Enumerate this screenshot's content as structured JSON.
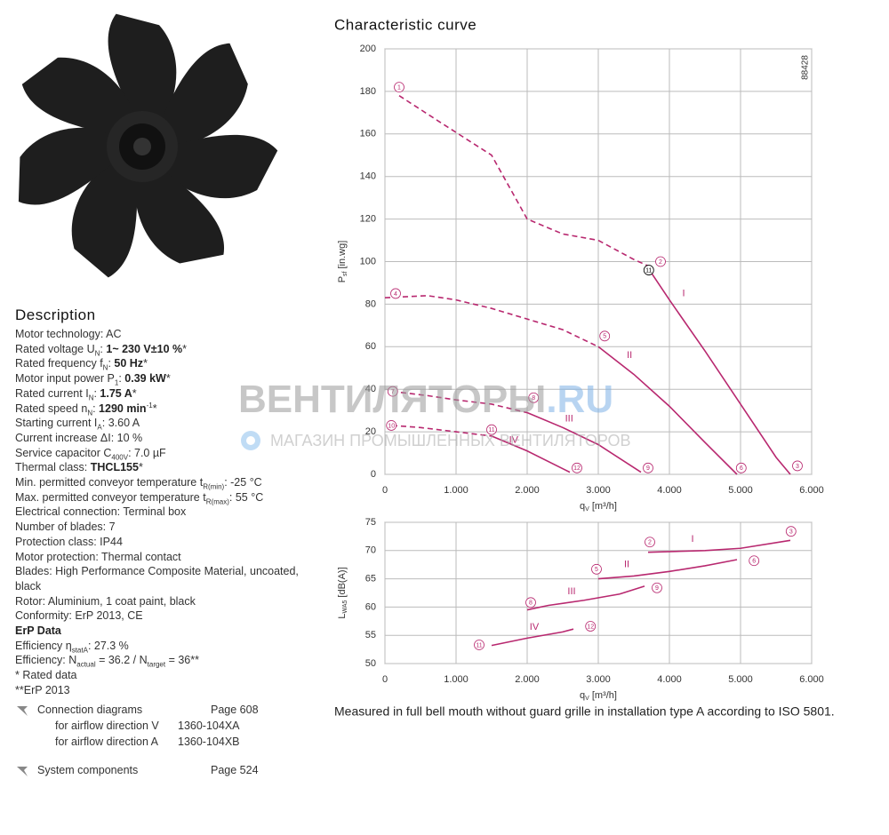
{
  "header": {
    "title": "Characteristic curve",
    "code": "88428"
  },
  "chart_data": [
    {
      "type": "line",
      "xlim": [
        0,
        6000
      ],
      "xticks": [
        0,
        {
          "value": 1000,
          "label": "1.000"
        },
        {
          "value": 2000,
          "label": "2.000"
        },
        {
          "value": 3000,
          "label": "3.000"
        },
        {
          "value": 4000,
          "label": "4.000"
        },
        {
          "value": 5000,
          "label": "5.000"
        },
        {
          "value": 6000,
          "label": "6.000"
        }
      ],
      "ylim": [
        0,
        200
      ],
      "yticks": [
        0,
        20,
        40,
        60,
        80,
        100,
        120,
        140,
        160,
        180,
        200
      ],
      "grid": true,
      "x_label": {
        "symbol": "q",
        "sub": "V",
        "unit": "[m³/h]"
      },
      "y_label": {
        "symbol": "P",
        "sub": "sf",
        "unit": "[in.wg]"
      },
      "series": [
        {
          "color": "#b8286f",
          "dashed": true,
          "x": [
            200,
            800,
            1500,
            2000,
            2500,
            3000,
            3500,
            3700
          ],
          "values": [
            178,
            165,
            150,
            120,
            113,
            110,
            101,
            98
          ]
        },
        {
          "name": "I",
          "color": "#b8286f",
          "label_x": 4200,
          "label_y": 85,
          "x": [
            3700,
            4000,
            4500,
            5000,
            5500,
            5700
          ],
          "values": [
            97,
            82,
            58,
            33,
            8,
            0
          ]
        },
        {
          "color": "#b8286f",
          "dashed": true,
          "x": [
            0,
            600,
            1000,
            1500,
            2000,
            2500,
            3000
          ],
          "values": [
            83,
            84,
            82,
            78,
            73,
            68,
            60
          ]
        },
        {
          "name": "II",
          "color": "#b8286f",
          "label_x": 3440,
          "label_y": 56,
          "x": [
            3000,
            3500,
            4000,
            4500,
            4950
          ],
          "values": [
            60,
            47,
            32,
            15,
            0
          ]
        },
        {
          "color": "#b8286f",
          "dashed": true,
          "x": [
            100,
            600,
            1000,
            1500,
            2000
          ],
          "values": [
            39,
            37,
            35,
            33,
            29
          ]
        },
        {
          "name": "III",
          "color": "#b8286f",
          "label_x": 2590,
          "label_y": 26,
          "x": [
            2000,
            2500,
            3000,
            3600
          ],
          "values": [
            29,
            22,
            14,
            1
          ]
        },
        {
          "color": "#b8286f",
          "dashed": true,
          "x": [
            100,
            500,
            1000,
            1500
          ],
          "values": [
            23,
            22,
            20,
            18
          ]
        },
        {
          "name": "IV",
          "color": "#b8286f",
          "label_x": 1810,
          "label_y": 16,
          "x": [
            1500,
            2000,
            2600
          ],
          "values": [
            18,
            11,
            1
          ]
        }
      ],
      "point_labels": [
        {
          "text": "1",
          "x": 200,
          "y": 182,
          "color": "#b8286f"
        },
        {
          "text": "2",
          "x": 3875,
          "y": 100,
          "color": "#b8286f"
        },
        {
          "text": "3",
          "x": 5800,
          "y": 4,
          "color": "#b8286f"
        },
        {
          "text": "4",
          "x": 150,
          "y": 85,
          "color": "#b8286f"
        },
        {
          "text": "5",
          "x": 3090,
          "y": 65,
          "color": "#b8286f"
        },
        {
          "text": "6",
          "x": 5010,
          "y": 3,
          "color": "#b8286f"
        },
        {
          "text": "7",
          "x": 110,
          "y": 39,
          "color": "#b8286f"
        },
        {
          "text": "8",
          "x": 2090,
          "y": 36,
          "color": "#b8286f"
        },
        {
          "text": "9",
          "x": 3700,
          "y": 3,
          "color": "#b8286f"
        },
        {
          "text": "10",
          "x": 90,
          "y": 23,
          "color": "#b8286f"
        },
        {
          "text": "11",
          "x": 1500,
          "y": 21,
          "color": "#b8286f"
        },
        {
          "text": "12",
          "x": 2700,
          "y": 3,
          "color": "#b8286f"
        },
        {
          "text": "11",
          "x": 3710,
          "y": 96,
          "color": "#000000"
        }
      ]
    },
    {
      "type": "line",
      "xlim": [
        0,
        6000
      ],
      "xticks": [
        0,
        {
          "value": 1000,
          "label": "1.000"
        },
        {
          "value": 2000,
          "label": "2.000"
        },
        {
          "value": 3000,
          "label": "3.000"
        },
        {
          "value": 4000,
          "label": "4.000"
        },
        {
          "value": 5000,
          "label": "5.000"
        },
        {
          "value": 6000,
          "label": "6.000"
        }
      ],
      "ylim": [
        50,
        75
      ],
      "yticks": [
        50,
        55,
        60,
        65,
        70,
        75
      ],
      "grid": true,
      "x_label": {
        "symbol": "q",
        "sub": "V",
        "unit": "[m³/h]"
      },
      "y_label": {
        "symbol": "L",
        "sub": "WA5",
        "unit": "[dB(A)]"
      },
      "series": [
        {
          "name": "I",
          "color": "#b8286f",
          "label_x": 4325,
          "label_y": 72,
          "x": [
            3700,
            4500,
            5000,
            5700
          ],
          "values": [
            69.7,
            70,
            70.4,
            71.8
          ]
        },
        {
          "name": "II",
          "color": "#b8286f",
          "label_x": 3400,
          "label_y": 67.5,
          "x": [
            3000,
            3500,
            4000,
            4500,
            4950
          ],
          "values": [
            65,
            65.5,
            66.3,
            67.3,
            68.4
          ]
        },
        {
          "name": "III",
          "color": "#b8286f",
          "label_x": 2625,
          "label_y": 62.7,
          "x": [
            2000,
            2300,
            2800,
            3300,
            3650
          ],
          "values": [
            59.5,
            60.3,
            61.2,
            62.3,
            63.7
          ]
        },
        {
          "name": "IV",
          "color": "#b8286f",
          "label_x": 2100,
          "label_y": 56.4,
          "x": [
            1500,
            2000,
            2500,
            2650
          ],
          "values": [
            53.2,
            54.5,
            55.6,
            56.1
          ]
        }
      ],
      "point_labels": [
        {
          "text": "2",
          "x": 3725,
          "y": 71.5,
          "color": "#b8286f"
        },
        {
          "text": "3",
          "x": 5710,
          "y": 73.4,
          "color": "#b8286f"
        },
        {
          "text": "5",
          "x": 2975,
          "y": 66.7,
          "color": "#b8286f"
        },
        {
          "text": "6",
          "x": 5190,
          "y": 68.2,
          "color": "#b8286f"
        },
        {
          "text": "8",
          "x": 2050,
          "y": 60.8,
          "color": "#b8286f"
        },
        {
          "text": "9",
          "x": 3825,
          "y": 63.4,
          "color": "#b8286f"
        },
        {
          "text": "11",
          "x": 1325,
          "y": 53.3,
          "color": "#b8286f"
        },
        {
          "text": "12",
          "x": 2890,
          "y": 56.6,
          "color": "#b8286f"
        }
      ]
    }
  ],
  "caption": "Measured in full bell mouth without guard grille in installation type A according to ISO 5801.",
  "watermark": {
    "brand": "ВЕНТИЛЯТОРЫ",
    "domain": ".RU",
    "tagline": "МАГАЗИН ПРОМЫШЛЕННЫХ ВЕНТИЛЯТОРОВ"
  },
  "description": {
    "title": "Description",
    "lines": [
      [
        {
          "text": "Motor technology: AC"
        }
      ],
      [
        {
          "text": "Rated voltage U"
        },
        {
          "text": "N",
          "style": "sub"
        },
        {
          "text": ": "
        },
        {
          "text": "1~ 230 V±10 %",
          "style": "bold"
        },
        {
          "text": "*"
        }
      ],
      [
        {
          "text": "Rated frequency f"
        },
        {
          "text": "N",
          "style": "sub"
        },
        {
          "text": ": "
        },
        {
          "text": "50 Hz",
          "style": "bold"
        },
        {
          "text": "*"
        }
      ],
      [
        {
          "text": "Motor input power P"
        },
        {
          "text": "1",
          "style": "sub"
        },
        {
          "text": ": "
        },
        {
          "text": "0.39 kW",
          "style": "bold"
        },
        {
          "text": "*"
        }
      ],
      [
        {
          "text": "Rated current I"
        },
        {
          "text": "N",
          "style": "sub"
        },
        {
          "text": ": "
        },
        {
          "text": "1.75 A",
          "style": "bold"
        },
        {
          "text": "*"
        }
      ],
      [
        {
          "text": "Rated speed n"
        },
        {
          "text": "N",
          "style": "sub"
        },
        {
          "text": ": "
        },
        {
          "text": "1290 min",
          "style": "bold"
        },
        {
          "text": "-1",
          "style": "sup"
        },
        {
          "text": "*"
        }
      ],
      [
        {
          "text": "Starting current I"
        },
        {
          "text": "A",
          "style": "sub"
        },
        {
          "text": ": 3.60 A"
        }
      ],
      [
        {
          "text": "Current increase ΔI: 10 %"
        }
      ],
      [
        {
          "text": "Service capacitor C"
        },
        {
          "text": "400V",
          "style": "sub"
        },
        {
          "text": ": 7.0 µF"
        }
      ],
      [
        {
          "text": "Thermal class: "
        },
        {
          "text": "THCL155",
          "style": "bold"
        },
        {
          "text": "*"
        }
      ],
      [
        {
          "text": "Min. permitted conveyor temperature t"
        },
        {
          "text": "R(min)",
          "style": "sub"
        },
        {
          "text": ": -25 °C"
        }
      ],
      [
        {
          "text": "Max. permitted conveyor temperature t"
        },
        {
          "text": "R(max)",
          "style": "sub"
        },
        {
          "text": ": 55 °C"
        }
      ],
      [
        {
          "text": "Electrical connection: Terminal box"
        }
      ],
      [
        {
          "text": "Number of blades: 7"
        }
      ],
      [
        {
          "text": "Protection class: IP44"
        }
      ],
      [
        {
          "text": "Motor protection: Thermal contact"
        }
      ],
      [
        {
          "text": "Blades: High Performance Composite Material, uncoated, black"
        }
      ],
      [
        {
          "text": "Rotor: Aluminium, 1 coat paint, black"
        }
      ],
      [
        {
          "text": "Conformity: ErP 2013, CE"
        }
      ],
      [
        {
          "text": "ErP Data",
          "style": "bold"
        }
      ],
      [
        {
          "text": "Efficiency η"
        },
        {
          "text": "statA",
          "style": "sub"
        },
        {
          "text": ": 27.3 %"
        }
      ],
      [
        {
          "text": "Efficiency: N"
        },
        {
          "text": "actual",
          "style": "sub"
        },
        {
          "text": " = 36.2 / N"
        },
        {
          "text": "target",
          "style": "sub"
        },
        {
          "text": " = 36**"
        }
      ],
      [
        {
          "text": "* Rated data"
        }
      ],
      [
        {
          "text": "**ErP 2013"
        }
      ]
    ]
  },
  "links": [
    {
      "label": "Connection diagrams",
      "page": "Page 608",
      "items": [
        {
          "label": "for airflow direction V",
          "code": "1360-104XA"
        },
        {
          "label": "for airflow direction A",
          "code": "1360-104XB"
        }
      ]
    },
    {
      "label": "System components",
      "page": "Page 524",
      "items": []
    }
  ]
}
